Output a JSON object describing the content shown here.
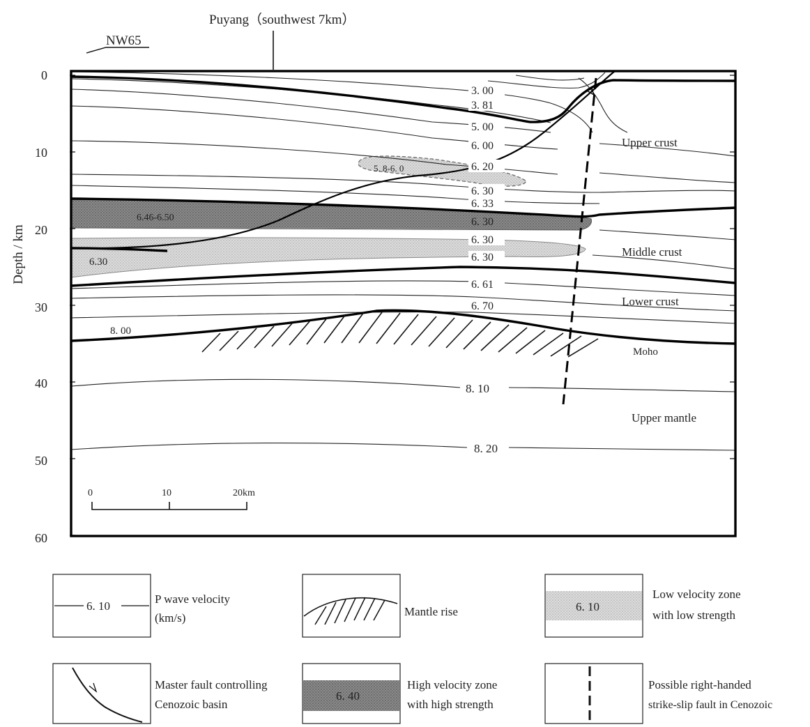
{
  "header": {
    "location": "Puyang（southwest 7km）",
    "direction": "NW65"
  },
  "axis": {
    "ylabel": "Depth / km",
    "ticks": [
      "0",
      "10",
      "20",
      "30",
      "40",
      "50",
      "60"
    ]
  },
  "velocity_labels": [
    "3. 00",
    "3. 81",
    "5. 00",
    "6. 00",
    "6. 20",
    "6. 30",
    "6. 33",
    "6. 30",
    "6. 30",
    "6. 30",
    "6. 61",
    "6. 70",
    "8. 10",
    "8. 20"
  ],
  "zone_labels": {
    "high_velocity": "6.46-6.50",
    "low_velocity_left": "6.30",
    "small_lens": "5. 8-6. 0",
    "moho_velocity": "8. 00"
  },
  "layers": {
    "upper_crust": "Upper crust",
    "middle_crust": "Middle crust",
    "lower_crust": "Lower crust",
    "moho": "Moho",
    "upper_mantle": "Upper mantle"
  },
  "scale": {
    "ticks": [
      "0",
      "10",
      "20km"
    ]
  },
  "legend": {
    "p_wave": {
      "sample": "6. 10",
      "text1": "P  wave  velocity",
      "text2": "(km/s)"
    },
    "mantle_rise": {
      "text": "Mantle  rise"
    },
    "low_velocity": {
      "sample": "6. 10",
      "text1": "Low  velocity  zone",
      "text2": "with  low  strength"
    },
    "master_fault": {
      "text1": "Master  fault  controlling",
      "text2": "Cenozoic  basin"
    },
    "high_velocity": {
      "sample": "6. 40",
      "text1": "High  velocity  zone",
      "text2": "with  high  strength"
    },
    "strike_slip": {
      "text1": "Possible  right-handed",
      "text2": "strike-slip  fault  in  Cenozoic"
    }
  }
}
